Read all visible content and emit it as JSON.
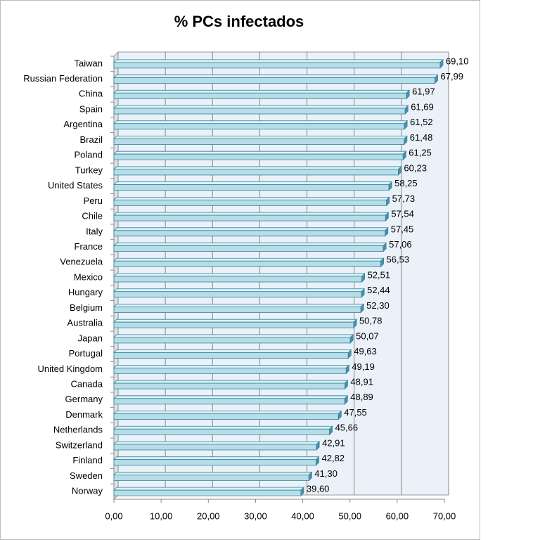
{
  "chart_data": {
    "type": "bar",
    "title": "% PCs infectados",
    "categories": [
      "Taiwan",
      "Russian Federation",
      "China",
      "Spain",
      "Argentina",
      "Brazil",
      "Poland",
      "Turkey",
      "United States",
      "Peru",
      "Chile",
      "Italy",
      "France",
      "Venezuela",
      "Mexico",
      "Hungary",
      "Belgium",
      "Australia",
      "Japan",
      "Portugal",
      "United Kingdom",
      "Canada",
      "Germany",
      "Denmark",
      "Netherlands",
      "Switzerland",
      "Finland",
      "Sweden",
      "Norway"
    ],
    "values": [
      69.1,
      67.99,
      61.97,
      61.69,
      61.52,
      61.48,
      61.25,
      60.23,
      58.25,
      57.73,
      57.54,
      57.45,
      57.06,
      56.53,
      52.51,
      52.44,
      52.3,
      50.78,
      50.07,
      49.63,
      49.19,
      48.91,
      48.89,
      47.55,
      45.66,
      42.91,
      42.82,
      41.3,
      39.6
    ],
    "value_labels": [
      "69,10",
      "67,99",
      "61,97",
      "61,69",
      "61,52",
      "61,48",
      "61,25",
      "60,23",
      "58,25",
      "57,73",
      "57,54",
      "57,45",
      "57,06",
      "56,53",
      "52,51",
      "52,44",
      "52,30",
      "50,78",
      "50,07",
      "49,63",
      "49,19",
      "48,91",
      "48,89",
      "47,55",
      "45,66",
      "42,91",
      "42,82",
      "41,30",
      "39,60"
    ],
    "color": "#b7dde8",
    "xlim": [
      0,
      70
    ],
    "xticks": [
      {
        "value": 0,
        "label": "0,00"
      },
      {
        "value": 10,
        "label": "10,00"
      },
      {
        "value": 20,
        "label": "20,00"
      },
      {
        "value": 30,
        "label": "30,00"
      },
      {
        "value": 40,
        "label": "40,00"
      },
      {
        "value": 50,
        "label": "50,00"
      },
      {
        "value": 60,
        "label": "60,00"
      },
      {
        "value": 70,
        "label": "70,00"
      }
    ],
    "grid": true
  }
}
